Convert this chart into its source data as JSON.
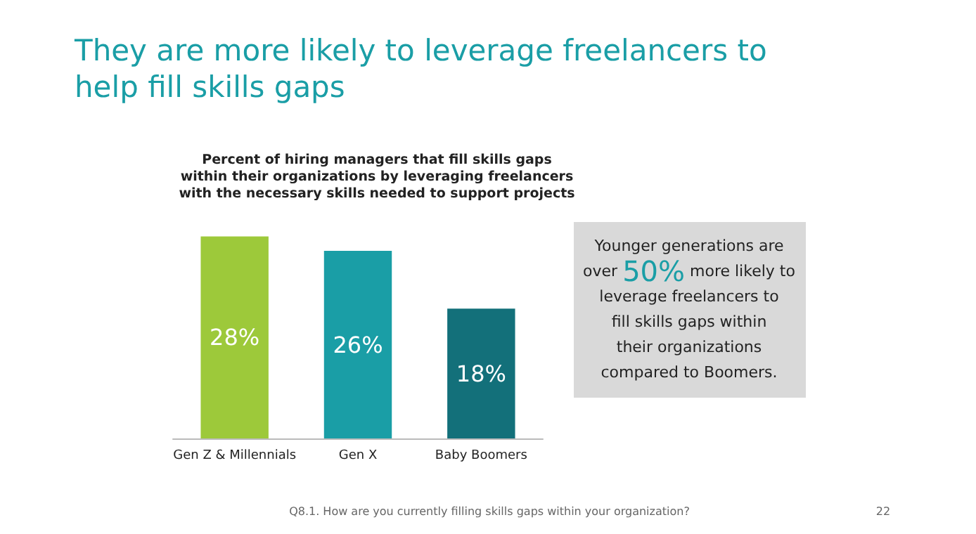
{
  "chart_data": {
    "type": "bar",
    "title": "They are more likely to leverage freelancers to help fill skills gaps",
    "subtitle": "Percent of hiring managers that fill skills gaps within their organizations by leveraging freelancers with the necessary skills needed to support projects",
    "categories": [
      "Gen Z & Millennials",
      "Gen X",
      "Baby Boomers"
    ],
    "values": [
      28,
      26,
      18
    ],
    "value_labels": [
      "28%",
      "26%",
      "18%"
    ],
    "colors": [
      "#9dc93a",
      "#1a9ea6",
      "#13707a"
    ],
    "annotations": [
      "Younger generations are over 50% more likely to leverage freelancers to fill skills gaps within their organizations compared to Boomers.",
      "Q8.1. How are you currently filling skills gaps within your organization?",
      "22"
    ]
  }
}
